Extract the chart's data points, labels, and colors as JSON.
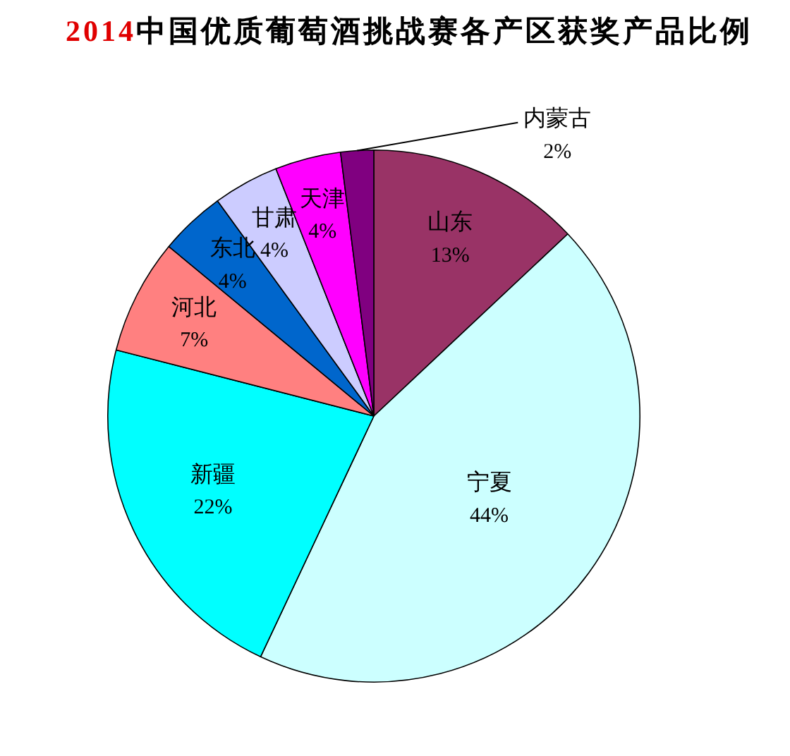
{
  "chart_data": {
    "type": "pie",
    "title": "2014中国优质葡萄酒挑战赛各产区获奖产品比例",
    "categories": [
      "山东",
      "宁夏",
      "新疆",
      "河北",
      "东北",
      "甘肃",
      "天津",
      "内蒙古"
    ],
    "values": [
      13,
      44,
      22,
      7,
      4,
      4,
      4,
      2
    ],
    "value_labels": [
      "13%",
      "44%",
      "22%",
      "7%",
      "4%",
      "4%",
      "4%",
      "2%"
    ],
    "colors": [
      "#993366",
      "#ccffff",
      "#00ffff",
      "#ff8080",
      "#0066cc",
      "#ccccff",
      "#ff00ff",
      "#800080"
    ]
  }
}
